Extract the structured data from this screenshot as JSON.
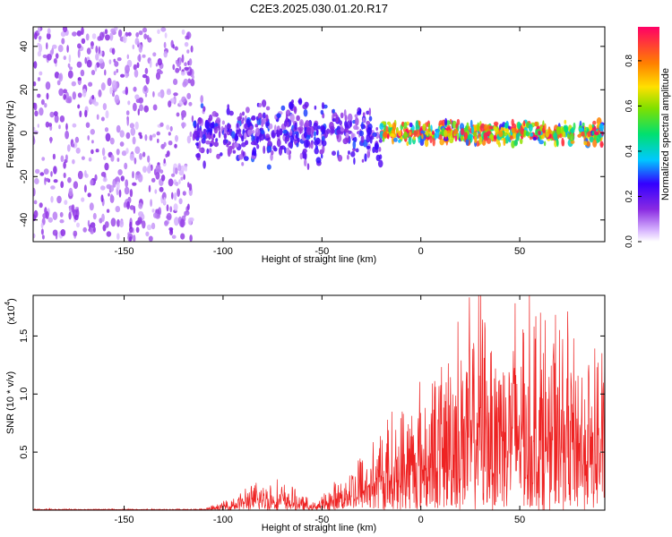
{
  "figure_title": "C2E3.2025.030.01.20.R17",
  "chart_data": [
    {
      "type": "heatmap",
      "title": "C2E3.2025.030.01.20.R17",
      "xlabel": "Height of straight line (km)",
      "ylabel": "Frequency (Hz)",
      "xlim": [
        -196,
        93
      ],
      "ylim": [
        -50,
        49
      ],
      "xticks": [
        -150,
        -100,
        -50,
        0,
        50
      ],
      "yticks": [
        -40,
        -20,
        0,
        20,
        40
      ],
      "colorbar": {
        "label": "Normalized spectral amplitude",
        "range": [
          0.0,
          0.95
        ],
        "ticks": [
          0.0,
          0.2,
          0.4,
          0.6,
          0.8
        ],
        "colormap": "rainbow"
      },
      "regions": [
        {
          "x_range": [
            -196,
            -115
          ],
          "freq_spread": 49,
          "amplitude_level": 0.1
        },
        {
          "x_range": [
            -115,
            -20
          ],
          "freq_spread": 16,
          "amplitude_level": 0.2
        },
        {
          "x_range": [
            -20,
            93
          ],
          "freq_spread": 6,
          "amplitude_level": 0.6
        }
      ],
      "grid": false
    },
    {
      "type": "line",
      "xlabel": "Height of straight line (km)",
      "ylabel": "SNR (10 * v/v)",
      "multiplier_label": "(x10",
      "multiplier_exponent": "4",
      "xlim": [
        -196,
        93
      ],
      "ylim": [
        0,
        1.85
      ],
      "xticks": [
        -150,
        -100,
        -50,
        0,
        50
      ],
      "yticks": [
        0.5,
        1.0,
        1.5
      ],
      "ytick_labels": [
        "0.5",
        "1.0",
        "1.5"
      ],
      "color": "#ee2222",
      "envelope": {
        "x": [
          -196,
          -110,
          -100,
          -90,
          -80,
          -70,
          -60,
          -55,
          -50,
          -40,
          -30,
          -20,
          -10,
          0,
          10,
          20,
          30,
          40,
          50,
          60,
          70,
          80,
          93
        ],
        "y": [
          0.01,
          0.01,
          0.06,
          0.15,
          0.22,
          0.2,
          0.12,
          0.05,
          0.1,
          0.25,
          0.45,
          0.6,
          0.75,
          0.9,
          1.1,
          1.35,
          1.6,
          1.5,
          1.55,
          1.45,
          1.4,
          1.2,
          1.3
        ]
      },
      "grid": false
    }
  ]
}
